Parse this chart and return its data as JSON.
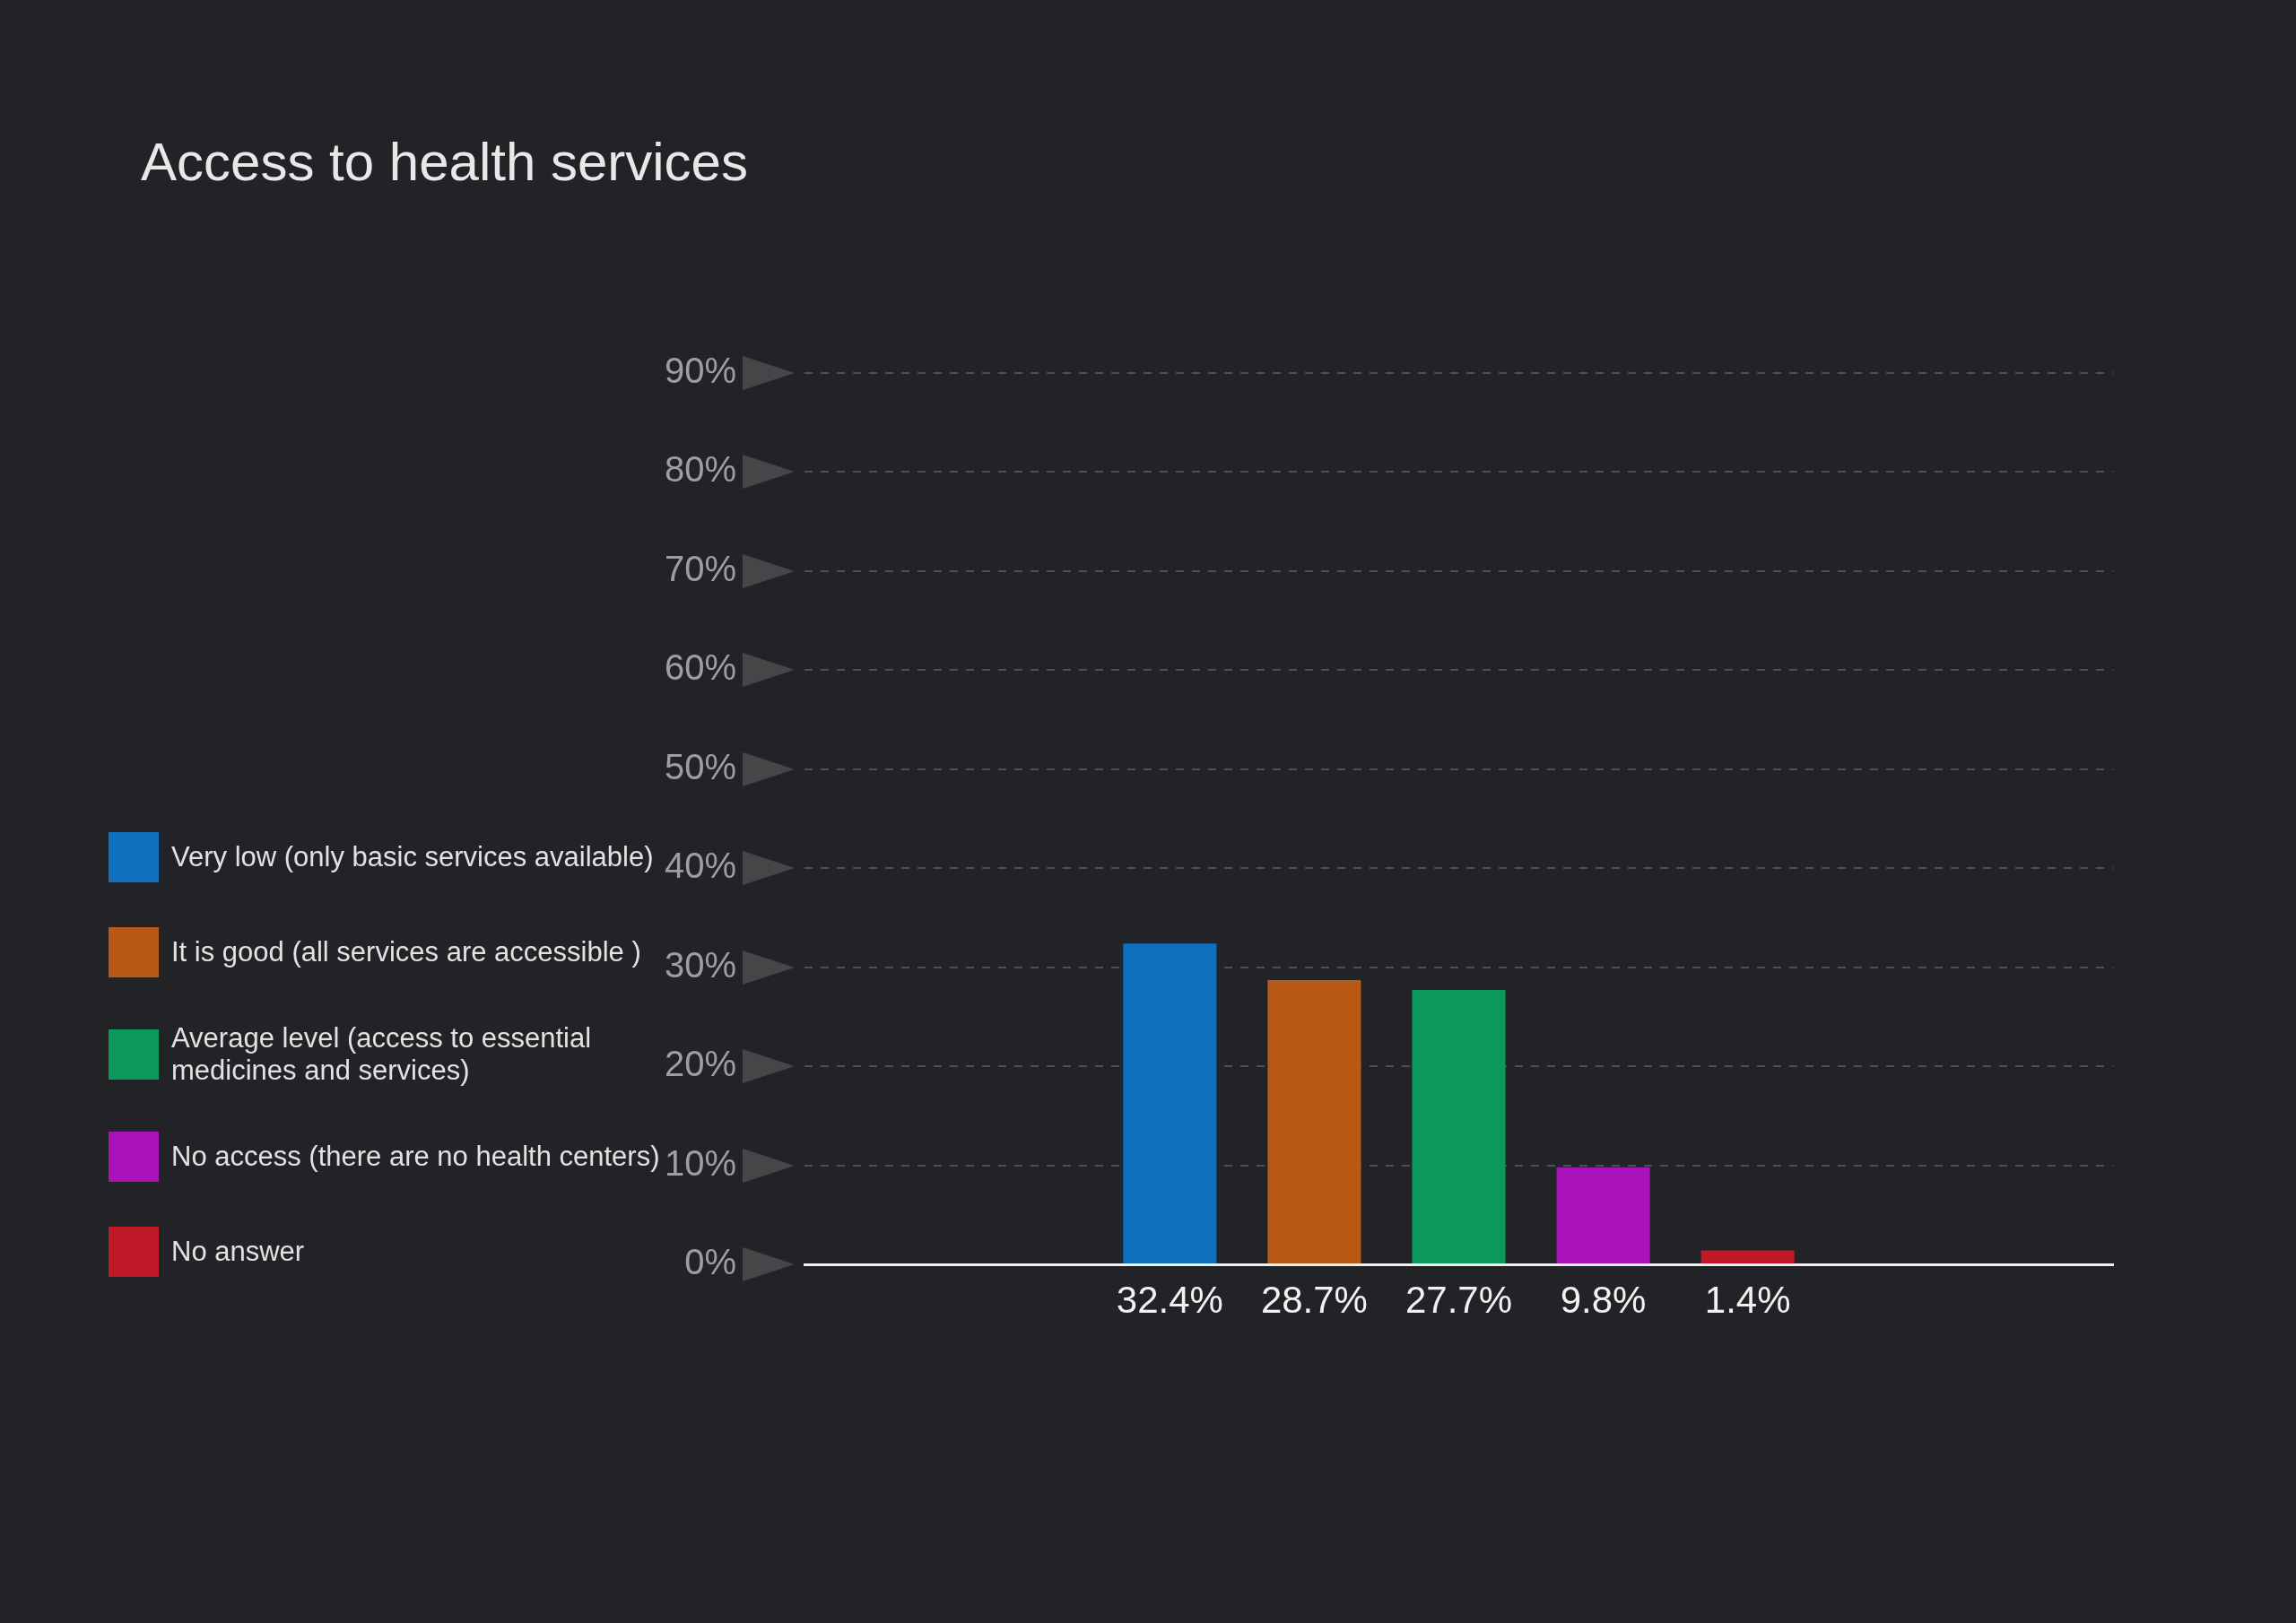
{
  "chart_data": {
    "type": "bar",
    "title": "Access to health services",
    "categories": [
      null
    ],
    "series": [
      {
        "name": "Very low (only basic services available)",
        "color": "#1070c0",
        "values": [
          32.4
        ],
        "value_labels": [
          "32.4%"
        ]
      },
      {
        "name": "It is good (all services are accessible )",
        "color": "#b85a14",
        "values": [
          28.7
        ],
        "value_labels": [
          "28.7%"
        ]
      },
      {
        "name": "Average level (access to essential medicines and services)",
        "color": "#0c9a5c",
        "values": [
          27.7
        ],
        "value_labels": [
          "27.7%"
        ]
      },
      {
        "name": "No access (there are no health centers)",
        "color": "#a812b8",
        "values": [
          9.8
        ],
        "value_labels": [
          "9.8%"
        ]
      },
      {
        "name": "No answer",
        "color": "#c01a28",
        "values": [
          1.4
        ],
        "value_labels": [
          "1.4%"
        ]
      }
    ],
    "ylim": [
      0,
      90
    ],
    "yticks": [
      {
        "value": 0,
        "label": "0%"
      },
      {
        "value": 10,
        "label": "10%"
      },
      {
        "value": 20,
        "label": "20%"
      },
      {
        "value": 30,
        "label": "30%"
      },
      {
        "value": 40,
        "label": "40%"
      },
      {
        "value": 50,
        "label": "50%"
      },
      {
        "value": 60,
        "label": "60%"
      },
      {
        "value": 70,
        "label": "70%"
      },
      {
        "value": 80,
        "label": "80%"
      },
      {
        "value": 90,
        "label": "90%"
      }
    ],
    "grid": "y",
    "legend": "left",
    "tick_labels": "y"
  }
}
